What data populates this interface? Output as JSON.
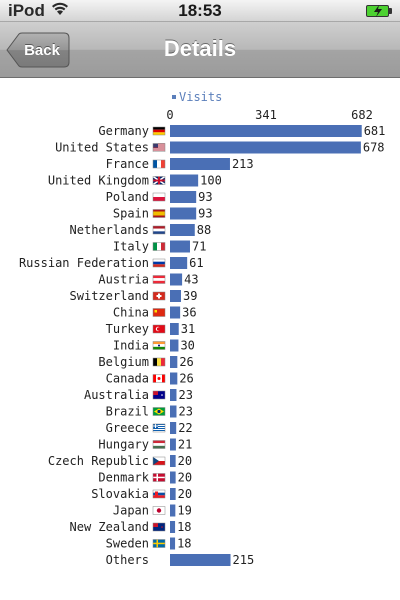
{
  "status_bar": {
    "carrier": "iPod",
    "time": "18:53"
  },
  "nav": {
    "back_label": "Back",
    "title": "Details"
  },
  "colors": {
    "bar": "#4a6fb5",
    "legend": "#5b7fbb"
  },
  "chart_data": {
    "type": "bar",
    "orientation": "horizontal",
    "legend": "Visits",
    "x_ticks": [
      "0",
      "341",
      "682"
    ],
    "xlim": [
      0,
      682
    ],
    "grid": false,
    "categories": [
      {
        "label": "Germany",
        "value": 681,
        "flag": "germany-flag"
      },
      {
        "label": "United States",
        "value": 678,
        "flag": "united-states-flag"
      },
      {
        "label": "France",
        "value": 213,
        "flag": "france-flag"
      },
      {
        "label": "United Kingdom",
        "value": 100,
        "flag": "united-kingdom-flag"
      },
      {
        "label": "Poland",
        "value": 93,
        "flag": "poland-flag"
      },
      {
        "label": "Spain",
        "value": 93,
        "flag": "spain-flag"
      },
      {
        "label": "Netherlands",
        "value": 88,
        "flag": "netherlands-flag"
      },
      {
        "label": "Italy",
        "value": 71,
        "flag": "italy-flag"
      },
      {
        "label": "Russian Federation",
        "value": 61,
        "flag": "russia-flag"
      },
      {
        "label": "Austria",
        "value": 43,
        "flag": "austria-flag"
      },
      {
        "label": "Switzerland",
        "value": 39,
        "flag": "switzerland-flag"
      },
      {
        "label": "China",
        "value": 36,
        "flag": "china-flag"
      },
      {
        "label": "Turkey",
        "value": 31,
        "flag": "turkey-flag"
      },
      {
        "label": "India",
        "value": 30,
        "flag": "india-flag"
      },
      {
        "label": "Belgium",
        "value": 26,
        "flag": "belgium-flag"
      },
      {
        "label": "Canada",
        "value": 26,
        "flag": "canada-flag"
      },
      {
        "label": "Australia",
        "value": 23,
        "flag": "australia-flag"
      },
      {
        "label": "Brazil",
        "value": 23,
        "flag": "brazil-flag"
      },
      {
        "label": "Greece",
        "value": 22,
        "flag": "greece-flag"
      },
      {
        "label": "Hungary",
        "value": 21,
        "flag": "hungary-flag"
      },
      {
        "label": "Czech Republic",
        "value": 20,
        "flag": "czech-republic-flag"
      },
      {
        "label": "Denmark",
        "value": 20,
        "flag": "denmark-flag"
      },
      {
        "label": "Slovakia",
        "value": 20,
        "flag": "slovakia-flag"
      },
      {
        "label": "Japan",
        "value": 19,
        "flag": "japan-flag"
      },
      {
        "label": "New Zealand",
        "value": 18,
        "flag": "new-zealand-flag"
      },
      {
        "label": "Sweden",
        "value": 18,
        "flag": "sweden-flag"
      },
      {
        "label": "Others",
        "value": 215,
        "flag": ""
      }
    ]
  }
}
